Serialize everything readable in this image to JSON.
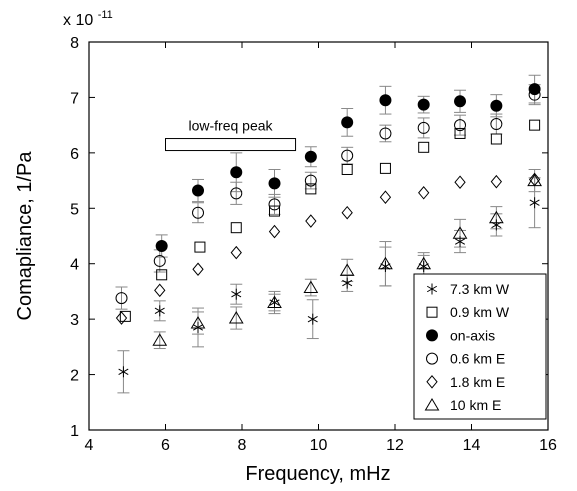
{
  "chart_data": {
    "type": "scatter",
    "xlabel": "Frequency, mHz",
    "ylabel": "Comapliance, 1/Pa",
    "y_multiplier": "x 10",
    "y_multiplier_exp": "-11",
    "xlim": [
      4,
      16
    ],
    "ylim": [
      1,
      8
    ],
    "xticks": [
      "4",
      "6",
      "8",
      "10",
      "12",
      "14",
      "16"
    ],
    "yticks": [
      "1",
      "2",
      "3",
      "4",
      "5",
      "6",
      "7",
      "8"
    ],
    "grid": false,
    "legend_position": "bottom-right",
    "annotation": {
      "text": "low-freq peak",
      "x_start": 6.0,
      "x_end": 9.4,
      "y": 6.15
    },
    "series": [
      {
        "name": "7.3 km W",
        "marker": "asterisk",
        "x": [
          4.9,
          5.85,
          6.85,
          7.85,
          8.85,
          9.85,
          10.75,
          11.75,
          12.75,
          13.7,
          14.65,
          15.65
        ],
        "y": [
          2.05,
          3.15,
          2.85,
          3.45,
          3.3,
          3.0,
          3.65,
          3.95,
          3.95,
          4.4,
          4.7,
          5.1
        ],
        "err": [
          0.38,
          0.18,
          0.35,
          0.18,
          0.15,
          0.35,
          0.15,
          0.35,
          0.2,
          0.2,
          0.2,
          0.45
        ]
      },
      {
        "name": "0.9 km W",
        "marker": "square",
        "x": [
          4.95,
          5.9,
          6.9,
          7.85,
          8.85,
          9.8,
          10.75,
          11.75,
          12.75,
          13.7,
          14.65,
          15.65
        ],
        "y": [
          3.05,
          3.8,
          4.3,
          4.65,
          4.95,
          5.35,
          5.7,
          5.72,
          6.1,
          6.35,
          6.25,
          6.5
        ],
        "err": [
          0,
          0,
          0,
          0,
          0,
          0,
          0,
          0,
          0,
          0,
          0,
          0
        ]
      },
      {
        "name": "on-axis",
        "marker": "filled-circle",
        "x": [
          5.9,
          6.85,
          7.85,
          8.85,
          9.8,
          10.75,
          11.75,
          12.75,
          13.7,
          14.65,
          15.65
        ],
        "y": [
          4.32,
          5.32,
          5.65,
          5.45,
          5.93,
          6.55,
          6.95,
          6.87,
          6.93,
          6.85,
          7.15
        ],
        "err": [
          0.2,
          0.2,
          0.35,
          0.25,
          0.18,
          0.25,
          0.25,
          0.15,
          0.2,
          0.2,
          0.25
        ]
      },
      {
        "name": "0.6 km E",
        "marker": "open-circle",
        "x": [
          4.85,
          5.85,
          6.85,
          7.85,
          8.85,
          9.8,
          10.75,
          11.75,
          12.75,
          13.7,
          14.65,
          15.65
        ],
        "y": [
          3.38,
          4.05,
          4.92,
          5.27,
          5.07,
          5.5,
          5.95,
          6.35,
          6.45,
          6.5,
          6.52,
          7.05
        ],
        "err": [
          0.2,
          0.2,
          0.18,
          0.2,
          0.18,
          0.15,
          0.15,
          0.15,
          0.18,
          0.18,
          0.18,
          0.18
        ]
      },
      {
        "name": "1.8 km E",
        "marker": "diamond",
        "x": [
          4.85,
          5.85,
          6.85,
          7.85,
          8.85,
          9.8,
          10.75,
          11.75,
          12.75,
          13.7,
          14.65,
          15.65
        ],
        "y": [
          3.02,
          3.52,
          3.9,
          4.2,
          4.58,
          4.77,
          4.92,
          5.2,
          5.28,
          5.47,
          5.48,
          5.52
        ],
        "err": [
          0,
          0,
          0,
          0,
          0,
          0,
          0,
          0,
          0,
          0,
          0,
          0
        ]
      },
      {
        "name": "10 km E",
        "marker": "triangle",
        "x": [
          5.85,
          6.85,
          7.85,
          8.85,
          9.8,
          10.75,
          11.75,
          12.75,
          13.7,
          14.65,
          15.65
        ],
        "y": [
          2.62,
          2.93,
          3.02,
          3.3,
          3.57,
          3.88,
          4.0,
          4.0,
          4.55,
          4.83,
          5.5
        ],
        "err": [
          0.15,
          0.2,
          0.2,
          0.2,
          0.15,
          0.2,
          0.4,
          0.2,
          0.25,
          0.2,
          0.2
        ]
      }
    ]
  }
}
